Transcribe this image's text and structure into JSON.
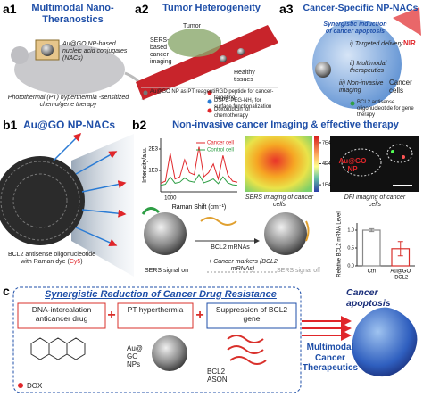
{
  "panels": {
    "a1": {
      "label": "a1",
      "title": "Multimodal Nano-Theranostics",
      "np_label": "Au@GO NP-based nucleic acid conjugates (NACs)",
      "caption": "Photothermal (PT) hyperthermia -sensitized chemo/gene therapy"
    },
    "a2": {
      "label": "a2",
      "title": "Tumor Heterogeneity",
      "tumor": "Tumor",
      "imaging": "SERS-based cancer imaging",
      "healthy": "Healthy tissues",
      "legend": [
        "Au@GO NP as PT reagent",
        "iRGD peptide for cancer-targeting",
        "DSPE-PEG-NH₂ for surface functionalization",
        "Doxorubicin for chemotherapy",
        "BCL2 antisense oligonucleotide for gene therapy"
      ]
    },
    "a3": {
      "label": "a3",
      "title": "Cancer-Specific NP-NACs",
      "nir": "NIR",
      "synergy": "Synergistic induction of cancer apoptosis",
      "item1": "i) Targeted delivery",
      "item2": "ii) Multimodal therapeutics",
      "item3": "iii) Non-invasive imaging",
      "cells": "Cancer cells"
    },
    "b1": {
      "label": "b1",
      "title": "Au@GO NP-NACs",
      "caption": "BCL2 antisense oligonucleotide with Raman dye (",
      "dye": "Cy5",
      "caption_end": ")"
    },
    "b2": {
      "label": "b2",
      "title": "Non-invasive cancer Imaging & effective therapy",
      "spectrum": {
        "x_label": "Raman Shift (cm⁻¹)",
        "y_label": "Intensity/a.u.",
        "x": [
          900,
          950,
          1000,
          1050,
          1100,
          1150,
          1200,
          1250,
          1300,
          1350,
          1400,
          1450,
          1500,
          1550,
          1600,
          1650,
          1700
        ],
        "series": [
          {
            "name": "Cancer cell",
            "color": "#e0262a",
            "values": [
              400,
              500,
              1800,
              600,
              700,
              1500,
              900,
              800,
              2100,
              700,
              900,
              1300,
              600,
              1700,
              800,
              500,
              450
            ]
          },
          {
            "name": "Control cell",
            "color": "#2e9e45",
            "values": [
              300,
              350,
              700,
              400,
              450,
              650,
              500,
              450,
              800,
              420,
              500,
              600,
              380,
              700,
              420,
              330,
              300
            ]
          }
        ],
        "xlim": [
          900,
          1700
        ],
        "ylim": [
          0,
          2500
        ],
        "xticks": [
          1000
        ],
        "yticks": [
          {
            "value": 2000,
            "label": "2E3"
          },
          {
            "value": 1000,
            "label": "1E3"
          }
        ]
      },
      "colorbar": {
        "lim": [
          0,
          80000
        ],
        "ticks": [
          {
            "value": 70000,
            "label": "7E4"
          },
          {
            "value": 40000,
            "label": "4E4"
          },
          {
            "value": 10000,
            "label": "1E4"
          }
        ]
      },
      "sers_caption": "SERS imaging of cancer cells",
      "dfi_np": "Au@GO NP",
      "dfi_caption": "DFI imaging of cancer cells",
      "mrna": "BCL2 mRNAs",
      "signal_on": "SERS signal on",
      "markers": "+ Cancer markers (BCL2 mRNAs)",
      "signal_off": "SERS signal off",
      "bars": {
        "y_label": "Relative BCL2 mRNA Level",
        "categories": [
          [
            "Ctrl"
          ],
          [
            "Au@GO",
            "-BCL2"
          ]
        ],
        "values": [
          1.0,
          0.48
        ],
        "errors": [
          0.04,
          0.2
        ],
        "colors": [
          "#ffffff",
          "#ffffff"
        ],
        "edge_colors": [
          "#888888",
          "#d9302b"
        ],
        "ylim": [
          0,
          1.2
        ],
        "yticks": [
          {
            "value": 0,
            "label": "0.0"
          },
          0.5,
          {
            "value": 1,
            "label": "1.0"
          }
        ]
      }
    },
    "c": {
      "label": "c",
      "title": "Synergistic Reduction of Cancer Drug Resistance",
      "box1": "DNA-intercalation anticancer drug",
      "box2": "PT hyperthermia",
      "box3": "Suppression of BCL2 gene",
      "dox": "DOX",
      "np": "Au@ GO NPs",
      "ason": "BCL2 ASON",
      "therapeutics": "Multimodal Cancer Therapeutics",
      "apoptosis": "Cancer apoptosis"
    }
  }
}
